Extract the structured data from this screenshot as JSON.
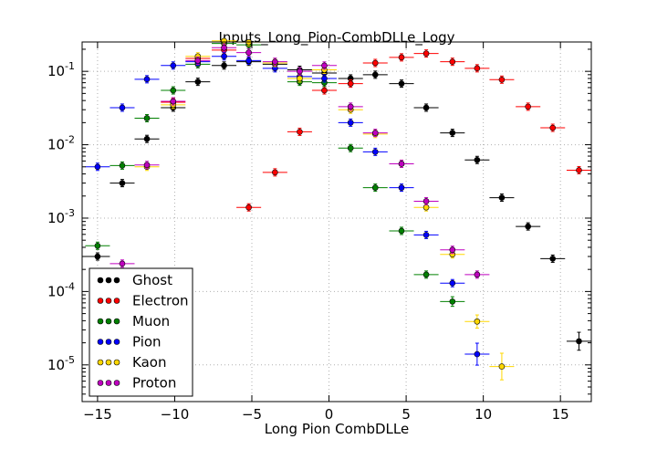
{
  "chart_data": {
    "type": "scatter",
    "title": "Inputs_Long_Pion-CombDLLe_Logy",
    "xlabel": "Long Pion CombDLLe",
    "ylabel": "",
    "xlim": [
      -16,
      17
    ],
    "ylim_log10": [
      -5.5,
      -0.6
    ],
    "yscale": "log",
    "grid": true,
    "legend_position": "bottom-left",
    "x_ticks": [
      -15,
      -10,
      -5,
      0,
      5,
      10,
      15
    ],
    "x_tick_labels": [
      "−15",
      "−10",
      "−5",
      "0",
      "5",
      "10",
      "15"
    ],
    "y_ticks": [
      -5,
      -4,
      -3,
      -2,
      -1
    ],
    "y_tick_bases": [
      "10",
      "10",
      "10",
      "10",
      "10"
    ],
    "y_tick_exps": [
      "-5",
      "-4",
      "-3",
      "-2",
      "-1"
    ],
    "bin_half_width": 0.8,
    "series": [
      {
        "name": "Ghost",
        "color": "#000000",
        "x": [
          -15.0,
          -13.4,
          -11.8,
          -10.1,
          -8.5,
          -6.8,
          -5.2,
          -3.5,
          -1.9,
          -0.3,
          1.4,
          3.0,
          4.7,
          6.3,
          8.0,
          9.6,
          11.2,
          12.9,
          14.5,
          16.2
        ],
        "y": [
          0.0003,
          0.003,
          0.012,
          0.032,
          0.072,
          0.12,
          0.135,
          0.125,
          0.105,
          0.095,
          0.08,
          0.09,
          0.068,
          0.032,
          0.0145,
          0.0062,
          0.0019,
          0.00077,
          0.00028,
          2.1e-05
        ]
      },
      {
        "name": "Electron",
        "color": "#ff0000",
        "x": [
          -10.1,
          -8.5,
          -6.8,
          -5.2,
          -3.5,
          -1.9,
          -0.3,
          1.4,
          3.0,
          4.7,
          6.3,
          8.0,
          9.6,
          11.2,
          12.9,
          14.5,
          16.2
        ],
        "y": [
          0.038,
          0.15,
          0.195,
          0.0014,
          0.0042,
          0.015,
          0.055,
          0.068,
          0.13,
          0.155,
          0.175,
          0.135,
          0.11,
          0.077,
          0.033,
          0.017,
          0.0045
        ]
      },
      {
        "name": "Muon",
        "color": "#008000",
        "x": [
          -15.0,
          -13.4,
          -11.8,
          -10.1,
          -8.5,
          -6.8,
          -5.2,
          -3.5,
          -1.9,
          -0.3,
          1.4,
          3.0,
          4.7,
          6.3,
          8.0
        ],
        "y": [
          0.00042,
          0.0052,
          0.023,
          0.055,
          0.125,
          0.24,
          0.23,
          0.13,
          0.072,
          0.07,
          0.009,
          0.0026,
          0.00067,
          0.00017,
          7.3e-05
        ]
      },
      {
        "name": "Pion",
        "color": "#0000ff",
        "x": [
          -15.0,
          -13.4,
          -11.8,
          -10.1,
          -8.5,
          -6.8,
          -5.2,
          -3.5,
          -1.9,
          -0.3,
          1.4,
          3.0,
          4.7,
          6.3,
          8.0,
          9.6
        ],
        "y": [
          0.005,
          0.032,
          0.078,
          0.12,
          0.135,
          0.16,
          0.14,
          0.11,
          0.085,
          0.08,
          0.02,
          0.008,
          0.0026,
          0.00059,
          0.00013,
          1.4e-05
        ]
      },
      {
        "name": "Kaon",
        "color": "#ffd700",
        "x": [
          -11.8,
          -10.1,
          -8.5,
          -6.8,
          -5.2,
          -3.5,
          -1.9,
          -0.3,
          1.4,
          3.0,
          4.7,
          6.3,
          8.0,
          9.6,
          11.2
        ],
        "y": [
          0.005,
          0.035,
          0.16,
          0.26,
          0.25,
          0.13,
          0.08,
          0.105,
          0.03,
          0.014,
          0.0055,
          0.0014,
          0.00032,
          3.9e-05,
          9.5e-06
        ]
      },
      {
        "name": "Proton",
        "color": "#bf00bf",
        "x": [
          -13.4,
          -11.8,
          -10.1,
          -8.5,
          -6.8,
          -5.2,
          -3.5,
          -1.9,
          -0.3,
          1.4,
          3.0,
          4.7,
          6.3,
          8.0,
          9.6
        ],
        "y": [
          0.00024,
          0.0053,
          0.039,
          0.14,
          0.21,
          0.18,
          0.135,
          0.1,
          0.12,
          0.033,
          0.0145,
          0.0055,
          0.0017,
          0.00037,
          0.00017
        ]
      }
    ]
  }
}
